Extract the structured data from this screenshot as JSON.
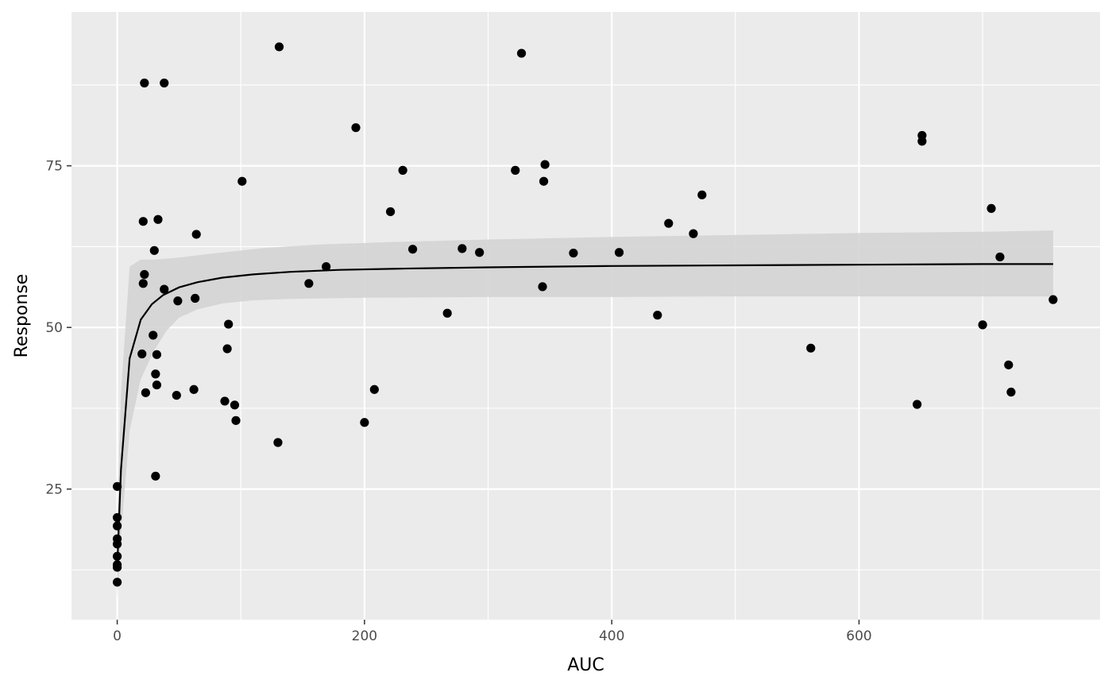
{
  "chart_data": {
    "type": "scatter",
    "xlabel": "AUC",
    "ylabel": "Response",
    "xlim": [
      -37,
      795
    ],
    "ylim": [
      4.8,
      98.8
    ],
    "x_ticks": [
      0,
      200,
      400,
      600
    ],
    "y_ticks": [
      25,
      50,
      75
    ],
    "x_tick_labels": [
      "0",
      "200",
      "400",
      "600"
    ],
    "y_tick_labels": [
      "25",
      "50",
      "75"
    ],
    "grid": true,
    "legend": "none",
    "colors": {
      "panel": "#ebebeb",
      "grid": "#ffffff",
      "point": "#000000",
      "fit_line": "#000000",
      "ribbon": "#d4d4d4"
    },
    "points": [
      {
        "x": 0,
        "y": 25.4
      },
      {
        "x": 0,
        "y": 20.6
      },
      {
        "x": 0,
        "y": 19.3
      },
      {
        "x": 0,
        "y": 17.3
      },
      {
        "x": 0,
        "y": 16.5
      },
      {
        "x": 0,
        "y": 14.6
      },
      {
        "x": 0,
        "y": 13.3
      },
      {
        "x": 0,
        "y": 12.9
      },
      {
        "x": 0,
        "y": 10.6
      },
      {
        "x": 20,
        "y": 45.9
      },
      {
        "x": 21,
        "y": 66.4
      },
      {
        "x": 21,
        "y": 56.8
      },
      {
        "x": 22,
        "y": 87.8
      },
      {
        "x": 22,
        "y": 58.2
      },
      {
        "x": 23,
        "y": 39.9
      },
      {
        "x": 29,
        "y": 48.8
      },
      {
        "x": 30,
        "y": 61.9
      },
      {
        "x": 31,
        "y": 27.0
      },
      {
        "x": 31,
        "y": 42.8
      },
      {
        "x": 32,
        "y": 45.8
      },
      {
        "x": 32,
        "y": 41.1
      },
      {
        "x": 33,
        "y": 66.7
      },
      {
        "x": 38,
        "y": 87.8
      },
      {
        "x": 38,
        "y": 55.9
      },
      {
        "x": 48,
        "y": 39.5
      },
      {
        "x": 49,
        "y": 54.1
      },
      {
        "x": 62,
        "y": 40.4
      },
      {
        "x": 63,
        "y": 54.5
      },
      {
        "x": 64,
        "y": 64.4
      },
      {
        "x": 87,
        "y": 38.6
      },
      {
        "x": 89,
        "y": 46.7
      },
      {
        "x": 90,
        "y": 50.5
      },
      {
        "x": 95,
        "y": 38.0
      },
      {
        "x": 96,
        "y": 35.6
      },
      {
        "x": 101,
        "y": 72.6
      },
      {
        "x": 130,
        "y": 32.2
      },
      {
        "x": 131,
        "y": 93.4
      },
      {
        "x": 155,
        "y": 56.8
      },
      {
        "x": 169,
        "y": 59.4
      },
      {
        "x": 193,
        "y": 80.9
      },
      {
        "x": 200,
        "y": 35.3
      },
      {
        "x": 208,
        "y": 40.4
      },
      {
        "x": 221,
        "y": 67.9
      },
      {
        "x": 231,
        "y": 74.3
      },
      {
        "x": 239,
        "y": 62.1
      },
      {
        "x": 267,
        "y": 52.2
      },
      {
        "x": 279,
        "y": 62.2
      },
      {
        "x": 293,
        "y": 61.6
      },
      {
        "x": 322,
        "y": 74.3
      },
      {
        "x": 327,
        "y": 92.4
      },
      {
        "x": 344,
        "y": 56.3
      },
      {
        "x": 345,
        "y": 72.6
      },
      {
        "x": 346,
        "y": 75.2
      },
      {
        "x": 369,
        "y": 61.5
      },
      {
        "x": 406,
        "y": 61.6
      },
      {
        "x": 437,
        "y": 51.9
      },
      {
        "x": 446,
        "y": 66.1
      },
      {
        "x": 466,
        "y": 64.5
      },
      {
        "x": 473,
        "y": 70.5
      },
      {
        "x": 561,
        "y": 46.8
      },
      {
        "x": 647,
        "y": 38.1
      },
      {
        "x": 651,
        "y": 79.7
      },
      {
        "x": 651,
        "y": 78.8
      },
      {
        "x": 700,
        "y": 50.4
      },
      {
        "x": 707,
        "y": 68.4
      },
      {
        "x": 714,
        "y": 60.9
      },
      {
        "x": 721,
        "y": 44.2
      },
      {
        "x": 723,
        "y": 40.0
      },
      {
        "x": 757,
        "y": 54.3
      }
    ],
    "fit_line": [
      {
        "x": 0,
        "y": 13.0
      },
      {
        "x": 3,
        "y": 28.0
      },
      {
        "x": 10,
        "y": 45.2
      },
      {
        "x": 19,
        "y": 51.2
      },
      {
        "x": 28,
        "y": 53.6
      },
      {
        "x": 37,
        "y": 55.0
      },
      {
        "x": 50,
        "y": 56.2
      },
      {
        "x": 65,
        "y": 57.0
      },
      {
        "x": 85,
        "y": 57.7
      },
      {
        "x": 110,
        "y": 58.2
      },
      {
        "x": 140,
        "y": 58.6
      },
      {
        "x": 180,
        "y": 58.9
      },
      {
        "x": 230,
        "y": 59.1
      },
      {
        "x": 300,
        "y": 59.3
      },
      {
        "x": 400,
        "y": 59.5
      },
      {
        "x": 500,
        "y": 59.6
      },
      {
        "x": 600,
        "y": 59.7
      },
      {
        "x": 700,
        "y": 59.8
      },
      {
        "x": 757,
        "y": 59.8
      }
    ],
    "ribbon_upper": [
      {
        "x": 0,
        "y": 20.0
      },
      {
        "x": 3,
        "y": 40.0
      },
      {
        "x": 10,
        "y": 59.4
      },
      {
        "x": 19,
        "y": 60.5
      },
      {
        "x": 30,
        "y": 60.5
      },
      {
        "x": 50,
        "y": 60.8
      },
      {
        "x": 80,
        "y": 61.5
      },
      {
        "x": 120,
        "y": 62.3
      },
      {
        "x": 160,
        "y": 62.8
      },
      {
        "x": 220,
        "y": 63.2
      },
      {
        "x": 300,
        "y": 63.6
      },
      {
        "x": 400,
        "y": 64.0
      },
      {
        "x": 500,
        "y": 64.3
      },
      {
        "x": 600,
        "y": 64.6
      },
      {
        "x": 700,
        "y": 64.8
      },
      {
        "x": 757,
        "y": 65.0
      }
    ],
    "ribbon_lower": [
      {
        "x": 0,
        "y": 8.0
      },
      {
        "x": 3,
        "y": 18.0
      },
      {
        "x": 10,
        "y": 34.0
      },
      {
        "x": 19,
        "y": 42.0
      },
      {
        "x": 30,
        "y": 46.5
      },
      {
        "x": 40,
        "y": 49.5
      },
      {
        "x": 50,
        "y": 51.5
      },
      {
        "x": 65,
        "y": 52.8
      },
      {
        "x": 85,
        "y": 53.7
      },
      {
        "x": 110,
        "y": 54.2
      },
      {
        "x": 140,
        "y": 54.4
      },
      {
        "x": 200,
        "y": 54.6
      },
      {
        "x": 300,
        "y": 54.7
      },
      {
        "x": 400,
        "y": 54.7
      },
      {
        "x": 500,
        "y": 54.8
      },
      {
        "x": 600,
        "y": 54.8
      },
      {
        "x": 700,
        "y": 54.8
      },
      {
        "x": 757,
        "y": 54.8
      }
    ]
  }
}
